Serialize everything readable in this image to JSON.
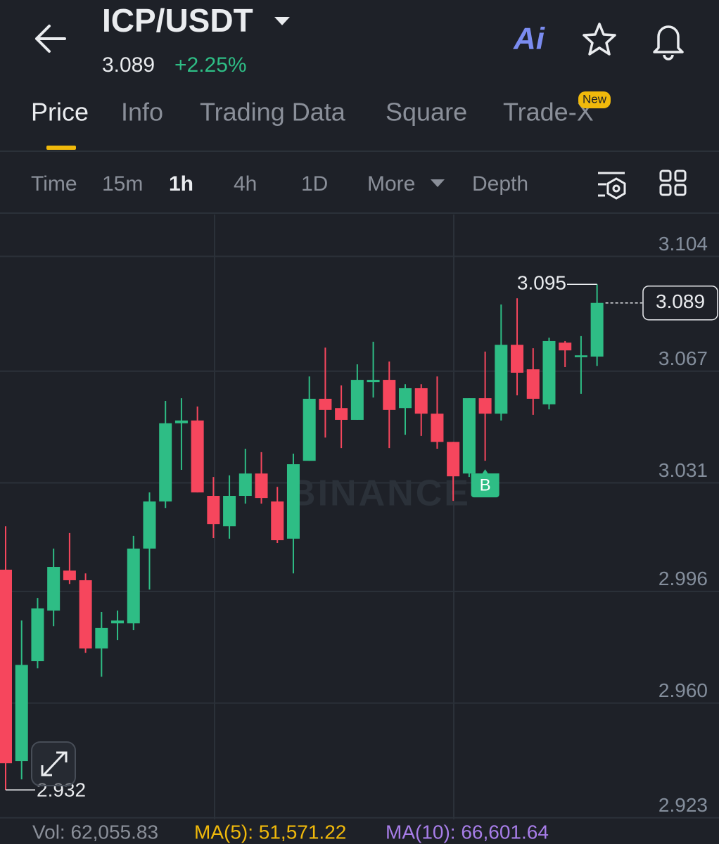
{
  "header": {
    "pair": "ICP/USDT",
    "price": "3.089",
    "change": "+2.25%",
    "ai": "Ai"
  },
  "tabs": {
    "items": [
      "Price",
      "Info",
      "Trading Data",
      "Square",
      "Trade-X"
    ],
    "active": 0,
    "badge": "New"
  },
  "intervals": {
    "items": [
      "Time",
      "15m",
      "1h",
      "4h",
      "1D",
      "More",
      "Depth"
    ],
    "active": 2
  },
  "chart_data": {
    "type": "candlestick",
    "open": [
      3.003,
      2.9413,
      2.9735,
      2.9898,
      3.0027,
      2.9996,
      2.9776,
      2.9857,
      2.9857,
      3.0098,
      3.025,
      3.0502,
      3.0511,
      3.0268,
      3.017,
      3.0268,
      3.034,
      3.025,
      3.013,
      3.0381,
      3.0581,
      3.0551,
      3.0513,
      3.0635,
      3.0642,
      3.0551,
      3.0615,
      3.0533,
      3.0442,
      3.034,
      3.0583,
      3.0533,
      3.0755,
      3.0676,
      3.0563,
      3.0762,
      3.0715,
      3.0717
    ],
    "high": [
      3.017,
      2.9866,
      2.9939,
      3.0098,
      3.0148,
      3.0018,
      2.9894,
      2.9898,
      3.0139,
      3.0279,
      3.0574,
      3.0583,
      3.0556,
      3.0329,
      3.0334,
      3.042,
      3.0409,
      3.0297,
      3.0404,
      3.0653,
      3.0746,
      3.0624,
      3.0692,
      3.0765,
      3.0701,
      3.0628,
      3.0628,
      3.0653,
      3.0442,
      3.0583,
      3.0733,
      3.0885,
      3.0905,
      3.0744,
      3.0778,
      3.0767,
      3.0783,
      3.095
    ],
    "low": [
      2.932,
      2.9354,
      2.9712,
      2.9848,
      2.9984,
      2.9762,
      2.9685,
      2.9803,
      2.9835,
      2.9966,
      3.0229,
      3.0352,
      3.0279,
      3.0132,
      3.013,
      3.0243,
      3.0243,
      3.0116,
      3.0018,
      3.0381,
      3.0456,
      3.0422,
      3.0513,
      3.0585,
      3.0422,
      3.0465,
      3.0461,
      3.042,
      3.0252,
      3.0329,
      3.0381,
      3.0511,
      3.0592,
      3.0529,
      3.0547,
      3.0683,
      3.0597,
      3.0687
    ],
    "close": [
      2.9406,
      2.9723,
      2.9905,
      3.0039,
      2.9996,
      2.9776,
      2.9842,
      2.9866,
      3.0098,
      3.025,
      3.0502,
      3.0511,
      3.0279,
      3.0177,
      3.0268,
      3.034,
      3.0261,
      3.0125,
      3.037,
      3.0581,
      3.0545,
      3.0513,
      3.0642,
      3.0642,
      3.0545,
      3.0615,
      3.0533,
      3.0442,
      3.0331,
      3.0583,
      3.0533,
      3.0755,
      3.0665,
      3.0581,
      3.0767,
      3.0737,
      3.0721,
      3.089
    ],
    "up_color": "#2ebd85",
    "down_color": "#f6465d",
    "ylim": [
      2.9225,
      3.1175
    ],
    "yticks": [
      3.104,
      3.067,
      3.031,
      2.996,
      {
        "value": 2.96,
        "label": "2.960"
      },
      2.923
    ],
    "grid": true,
    "max_label": 3.095,
    "min_label": 2.932,
    "last_price": 3.089,
    "marker_label": "B",
    "marker_index": 30,
    "watermark": "BINANCE"
  },
  "footer": {
    "vol": "Vol: 62,055.83",
    "ma5": "MA(5): 51,571.22",
    "ma10": "MA(10): 66,601.64"
  }
}
